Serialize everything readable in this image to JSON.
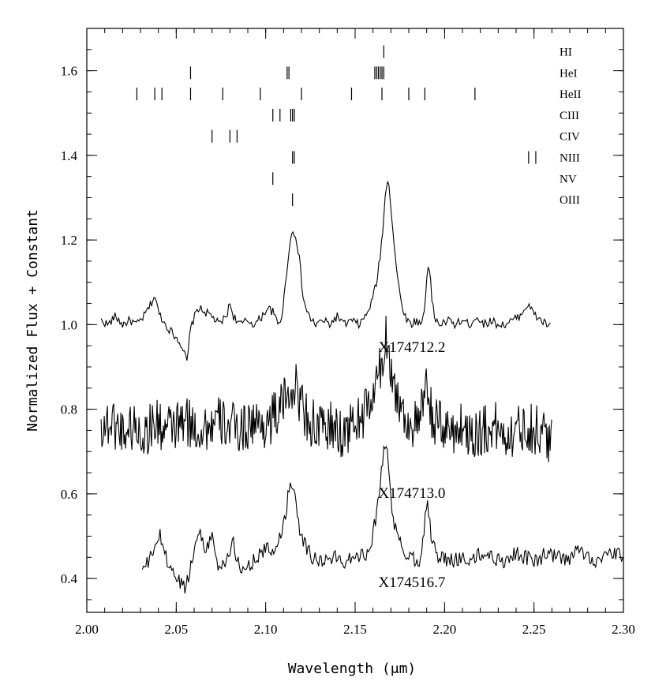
{
  "chart_data": {
    "type": "line",
    "title": "",
    "xlabel": "Wavelength (μm)",
    "ylabel": "Normalized Flux + Constant",
    "xlim": [
      2.0,
      2.3
    ],
    "ylim": [
      0.32,
      1.7
    ],
    "xticks": [
      2.0,
      2.05,
      2.1,
      2.15,
      2.2,
      2.25,
      2.3
    ],
    "xtick_labels": [
      "2.00",
      "2.05",
      "2.10",
      "2.15",
      "2.20",
      "2.25",
      "2.30"
    ],
    "yticks": [
      0.4,
      0.6,
      0.8,
      1.0,
      1.2,
      1.4,
      1.6
    ],
    "ytick_labels": [
      "0.4",
      "0.6",
      "0.8",
      "1.0",
      "1.2",
      "1.4",
      "1.6"
    ],
    "grid": false,
    "line_identifications": [
      {
        "name": "HI",
        "y": 1.645,
        "wavelengths": [
          2.166
        ]
      },
      {
        "name": "HeI",
        "y": 1.595,
        "wavelengths": [
          2.058,
          2.112,
          2.113,
          2.161,
          2.162,
          2.163,
          2.164,
          2.165,
          2.166
        ]
      },
      {
        "name": "HeII",
        "y": 1.545,
        "wavelengths": [
          2.028,
          2.038,
          2.042,
          2.058,
          2.076,
          2.097,
          2.12,
          2.148,
          2.165,
          2.18,
          2.189,
          2.217
        ]
      },
      {
        "name": "CIII",
        "y": 1.495,
        "wavelengths": [
          2.104,
          2.108,
          2.114,
          2.115,
          2.116
        ]
      },
      {
        "name": "CIV",
        "y": 1.445,
        "wavelengths": [
          2.07,
          2.08,
          2.084
        ]
      },
      {
        "name": "NIII",
        "y": 1.395,
        "wavelengths": [
          2.115,
          2.116,
          2.247,
          2.251
        ]
      },
      {
        "name": "NV",
        "y": 1.345,
        "wavelengths": [
          2.104
        ]
      },
      {
        "name": "OIII",
        "y": 1.295,
        "wavelengths": [
          2.115
        ]
      }
    ],
    "series": [
      {
        "name": "X174712.2",
        "label_at": [
          2.163,
          0.935
        ],
        "x": [
          2.008,
          2.012,
          2.016,
          2.02,
          2.024,
          2.028,
          2.032,
          2.036,
          2.038,
          2.04,
          2.044,
          2.048,
          2.052,
          2.054,
          2.056,
          2.058,
          2.062,
          2.066,
          2.07,
          2.074,
          2.078,
          2.08,
          2.082,
          2.086,
          2.09,
          2.094,
          2.098,
          2.101,
          2.104,
          2.107,
          2.109,
          2.111,
          2.113,
          2.115,
          2.117,
          2.119,
          2.121,
          2.124,
          2.128,
          2.132,
          2.136,
          2.14,
          2.144,
          2.148,
          2.152,
          2.156,
          2.159,
          2.162,
          2.164,
          2.166,
          2.167,
          2.168,
          2.169,
          2.17,
          2.172,
          2.174,
          2.176,
          2.178,
          2.181,
          2.184,
          2.187,
          2.189,
          2.19,
          2.191,
          2.192,
          2.193,
          2.195,
          2.198,
          2.202,
          2.206,
          2.21,
          2.214,
          2.218,
          2.222,
          2.226,
          2.23,
          2.234,
          2.238,
          2.242,
          2.245,
          2.247,
          2.249,
          2.251,
          2.254,
          2.257,
          2.26
        ],
        "y": [
          1.01,
          1.0,
          1.02,
          1.0,
          1.01,
          1.0,
          1.02,
          1.05,
          1.07,
          1.03,
          1.0,
          0.98,
          0.96,
          0.94,
          0.91,
          0.99,
          1.04,
          1.03,
          1.02,
          1.0,
          1.02,
          1.05,
          1.02,
          1.0,
          1.01,
          1.0,
          1.02,
          1.04,
          1.03,
          1.0,
          1.02,
          1.09,
          1.18,
          1.22,
          1.21,
          1.15,
          1.06,
          1.02,
          1.0,
          1.01,
          1.0,
          1.02,
          1.0,
          1.01,
          1.0,
          1.02,
          1.05,
          1.1,
          1.16,
          1.25,
          1.31,
          1.35,
          1.33,
          1.28,
          1.18,
          1.1,
          1.05,
          1.02,
          1.0,
          1.01,
          1.0,
          1.04,
          1.11,
          1.15,
          1.12,
          1.05,
          1.01,
          1.0,
          1.01,
          1.0,
          1.01,
          1.0,
          1.02,
          1.0,
          1.01,
          1.0,
          1.0,
          1.01,
          1.02,
          1.04,
          1.05,
          1.03,
          1.02,
          1.01,
          1.0,
          1.0
        ]
      },
      {
        "name": "X174713.0",
        "label_at": [
          2.163,
          0.59
        ],
        "x": [
          2.008,
          2.014,
          2.02,
          2.026,
          2.032,
          2.038,
          2.044,
          2.05,
          2.056,
          2.062,
          2.068,
          2.074,
          2.08,
          2.086,
          2.092,
          2.098,
          2.104,
          2.108,
          2.112,
          2.115,
          2.118,
          2.121,
          2.125,
          2.13,
          2.136,
          2.142,
          2.148,
          2.153,
          2.157,
          2.16,
          2.162,
          2.164,
          2.166,
          2.167,
          2.168,
          2.169,
          2.17,
          2.172,
          2.175,
          2.178,
          2.182,
          2.186,
          2.189,
          2.19,
          2.191,
          2.192,
          2.194,
          2.198,
          2.204,
          2.21,
          2.216,
          2.222,
          2.228,
          2.234,
          2.24,
          2.246,
          2.252,
          2.256,
          2.26
        ],
        "y": [
          0.76,
          0.77,
          0.75,
          0.76,
          0.74,
          0.77,
          0.75,
          0.76,
          0.77,
          0.75,
          0.76,
          0.77,
          0.76,
          0.75,
          0.77,
          0.76,
          0.78,
          0.8,
          0.83,
          0.86,
          0.84,
          0.8,
          0.77,
          0.75,
          0.76,
          0.74,
          0.76,
          0.78,
          0.8,
          0.83,
          0.86,
          0.89,
          0.93,
          0.96,
          0.98,
          0.95,
          0.9,
          0.85,
          0.81,
          0.78,
          0.76,
          0.77,
          0.82,
          0.86,
          0.84,
          0.8,
          0.77,
          0.76,
          0.75,
          0.76,
          0.74,
          0.75,
          0.76,
          0.74,
          0.75,
          0.76,
          0.75,
          0.74,
          0.73
        ]
      },
      {
        "name": "X174516.7",
        "label_at": [
          2.163,
          0.38
        ],
        "x": [
          2.031,
          2.035,
          2.038,
          2.041,
          2.045,
          2.05,
          2.055,
          2.059,
          2.062,
          2.066,
          2.07,
          2.074,
          2.078,
          2.082,
          2.086,
          2.09,
          2.095,
          2.1,
          2.104,
          2.108,
          2.111,
          2.113,
          2.115,
          2.117,
          2.119,
          2.122,
          2.126,
          2.132,
          2.138,
          2.144,
          2.15,
          2.155,
          2.159,
          2.162,
          2.164,
          2.166,
          2.167,
          2.168,
          2.169,
          2.171,
          2.174,
          2.178,
          2.182,
          2.186,
          2.188,
          2.19,
          2.191,
          2.193,
          2.197,
          2.203,
          2.209,
          2.215,
          2.221,
          2.227,
          2.233,
          2.239,
          2.245,
          2.251,
          2.257,
          2.263,
          2.269,
          2.275,
          2.281,
          2.287,
          2.293,
          2.3
        ],
        "y": [
          0.42,
          0.44,
          0.48,
          0.5,
          0.44,
          0.4,
          0.38,
          0.44,
          0.52,
          0.47,
          0.5,
          0.42,
          0.45,
          0.48,
          0.41,
          0.43,
          0.45,
          0.47,
          0.46,
          0.5,
          0.55,
          0.61,
          0.63,
          0.58,
          0.52,
          0.48,
          0.45,
          0.44,
          0.45,
          0.44,
          0.46,
          0.45,
          0.49,
          0.55,
          0.63,
          0.7,
          0.72,
          0.7,
          0.64,
          0.55,
          0.49,
          0.46,
          0.45,
          0.44,
          0.5,
          0.58,
          0.56,
          0.48,
          0.45,
          0.44,
          0.45,
          0.44,
          0.46,
          0.45,
          0.44,
          0.46,
          0.45,
          0.44,
          0.46,
          0.45,
          0.44,
          0.47,
          0.45,
          0.44,
          0.46,
          0.45
        ]
      }
    ]
  }
}
